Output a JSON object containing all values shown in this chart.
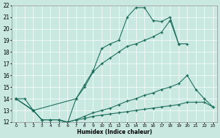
{
  "xlabel": "Humidex (Indice chaleur)",
  "bg_color": "#c8e8e0",
  "grid_color": "#ffffff",
  "line_color": "#1a6b5a",
  "xlim": [
    -0.5,
    23.5
  ],
  "ylim": [
    12,
    22
  ],
  "xticks": [
    0,
    1,
    2,
    3,
    4,
    5,
    6,
    7,
    8,
    9,
    10,
    11,
    12,
    13,
    14,
    15,
    16,
    17,
    18,
    19,
    20,
    21,
    22,
    23
  ],
  "yticks": [
    12,
    13,
    14,
    15,
    16,
    17,
    18,
    19,
    20,
    21,
    22
  ],
  "series": [
    {
      "x": [
        0,
        1,
        2,
        3,
        4,
        5,
        6,
        7,
        8,
        9,
        10,
        11,
        12,
        13,
        14,
        15,
        16,
        17,
        18,
        19
      ],
      "y": [
        14.0,
        14.0,
        13.0,
        12.2,
        12.2,
        12.2,
        11.9,
        14.0,
        15.2,
        16.4,
        18.3,
        18.7,
        19.0,
        21.0,
        21.8,
        21.8,
        20.7,
        20.6,
        21.0,
        18.7
      ]
    },
    {
      "x": [
        0,
        2,
        7,
        8,
        9,
        10,
        11,
        12,
        13,
        14,
        15,
        16,
        17,
        18,
        19,
        20
      ],
      "y": [
        14.0,
        13.0,
        14.0,
        15.0,
        16.3,
        17.0,
        17.5,
        18.0,
        18.5,
        18.7,
        19.0,
        19.3,
        19.7,
        20.7,
        18.7,
        18.7
      ]
    },
    {
      "x": [
        0,
        2,
        3,
        4,
        5,
        6,
        7,
        8,
        9,
        10,
        11,
        12,
        13,
        14,
        15,
        16,
        17,
        18,
        19,
        20,
        21,
        22,
        23
      ],
      "y": [
        14.0,
        13.0,
        12.2,
        12.2,
        12.2,
        12.0,
        12.2,
        12.5,
        12.8,
        13.0,
        13.2,
        13.5,
        13.8,
        14.0,
        14.3,
        14.5,
        14.8,
        15.0,
        15.3,
        16.0,
        14.8,
        14.0,
        13.3
      ]
    },
    {
      "x": [
        0,
        2,
        3,
        4,
        5,
        6,
        7,
        8,
        9,
        10,
        11,
        12,
        13,
        14,
        15,
        16,
        17,
        18,
        19,
        20,
        21,
        22,
        23
      ],
      "y": [
        14.0,
        13.0,
        12.2,
        12.2,
        12.2,
        12.0,
        12.2,
        12.3,
        12.5,
        12.6,
        12.7,
        12.8,
        12.9,
        13.0,
        13.1,
        13.2,
        13.3,
        13.4,
        13.5,
        13.7,
        13.7,
        13.7,
        13.3
      ]
    }
  ]
}
